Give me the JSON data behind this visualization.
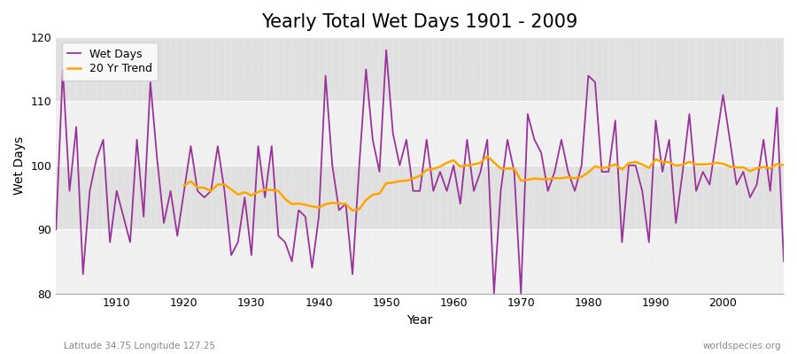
{
  "title": "Yearly Total Wet Days 1901 - 2009",
  "xlabel": "Year",
  "ylabel": "Wet Days",
  "xlim": [
    1901,
    2009
  ],
  "ylim": [
    80,
    120
  ],
  "yticks": [
    80,
    90,
    100,
    110,
    120
  ],
  "xticks": [
    1910,
    1920,
    1930,
    1940,
    1950,
    1960,
    1970,
    1980,
    1990,
    2000
  ],
  "fig_bg_color": "#ffffff",
  "plot_bg_color": "#f0f0f0",
  "band_color_light": "#f0f0f0",
  "band_color_dark": "#e0e0e0",
  "wet_days_color": "#993399",
  "trend_color": "#ffa500",
  "legend_labels": [
    "Wet Days",
    "20 Yr Trend"
  ],
  "subtitle_left": "Latitude 34.75 Longitude 127.25",
  "subtitle_right": "worldspecies.org",
  "wet_days": [
    90,
    115,
    96,
    106,
    83,
    96,
    101,
    104,
    88,
    96,
    92,
    88,
    104,
    92,
    113,
    101,
    91,
    96,
    89,
    96,
    103,
    96,
    95,
    96,
    103,
    96,
    86,
    88,
    95,
    86,
    103,
    95,
    103,
    89,
    88,
    85,
    93,
    92,
    84,
    92,
    114,
    100,
    93,
    94,
    83,
    100,
    115,
    104,
    99,
    118,
    105,
    100,
    104,
    96,
    96,
    104,
    96,
    99,
    96,
    100,
    94,
    104,
    96,
    99,
    104,
    80,
    96,
    104,
    99,
    80,
    108,
    104,
    102,
    96,
    99,
    104,
    99,
    96,
    100,
    114,
    113,
    99,
    99,
    107,
    88,
    100,
    100,
    96,
    88,
    107,
    99,
    104,
    91,
    99,
    108,
    96,
    99,
    97,
    104,
    111,
    104,
    97,
    99,
    95,
    97,
    104,
    96,
    109,
    85
  ],
  "title_fontsize": 15,
  "axis_fontsize": 10,
  "tick_fontsize": 9,
  "legend_fontsize": 9,
  "linewidth": 1.3,
  "trend_linewidth": 1.8,
  "trend_window": 20
}
